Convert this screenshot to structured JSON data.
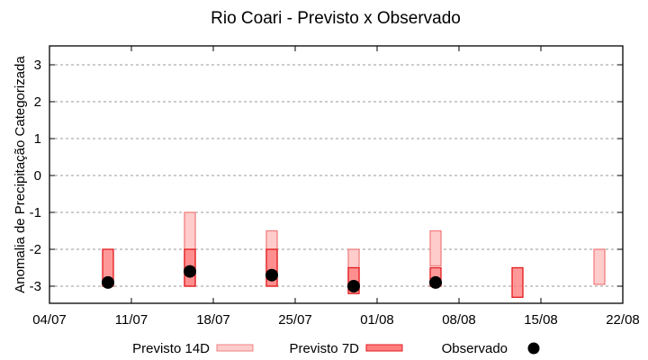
{
  "chart_data": {
    "type": "bar",
    "subtype": "floating-range-with-points",
    "title": "Rio Coari - Previsto x Observado",
    "xlabel": "",
    "ylabel": "Anomalia de Precipitação Categorizada",
    "ylim": [
      -3.5,
      3.5
    ],
    "yticks": [
      3,
      2,
      1,
      0,
      -1,
      -2,
      -3
    ],
    "ytick_labels": [
      "3",
      "2",
      "1",
      "0",
      "-1",
      "-2",
      "-3"
    ],
    "xticks": [
      "04/07",
      "11/07",
      "18/07",
      "25/07",
      "01/08",
      "08/08",
      "15/08",
      "22/08"
    ],
    "xlim_days": [
      0,
      49
    ],
    "grid": {
      "y": true,
      "x": false,
      "style": "dotted",
      "color": "#999999"
    },
    "legend": {
      "position": "bottom",
      "entries": [
        "Previsto 14D",
        "Previsto 7D",
        "Observado"
      ]
    },
    "colors": {
      "previsto_14d_fill": "#ffcccc",
      "previsto_14d_stroke": "#f08080",
      "previsto_7d_fill": "#ff7f7f",
      "previsto_7d_stroke": "#e31a1c",
      "observado": "#000000"
    },
    "categories": [
      "09/07",
      "16/07",
      "23/07",
      "30/07",
      "06/08",
      "13/08",
      "20/08"
    ],
    "day_offsets": [
      5,
      12,
      19,
      26,
      33,
      40,
      47
    ],
    "series": [
      {
        "name": "Previsto 14D",
        "ranges": [
          null,
          [
            -1,
            -3
          ],
          [
            -1.5,
            -3
          ],
          [
            -2,
            -3.1
          ],
          [
            -1.5,
            -2.45
          ],
          null,
          [
            -2,
            -2.95
          ]
        ]
      },
      {
        "name": "Previsto 7D",
        "ranges": [
          [
            -2,
            -3
          ],
          [
            -2,
            -3
          ],
          [
            -2,
            -3
          ],
          [
            -2.5,
            -3.2
          ],
          [
            -2.5,
            -3
          ],
          [
            -2.5,
            -3.3
          ],
          null
        ]
      },
      {
        "name": "Observado",
        "values": [
          -2.9,
          -2.6,
          -2.7,
          -3.0,
          -2.9,
          null,
          null
        ]
      }
    ]
  }
}
